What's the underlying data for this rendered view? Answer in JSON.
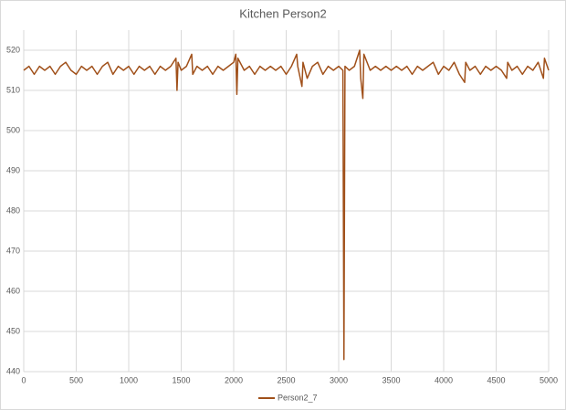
{
  "chart_data": {
    "type": "line",
    "title": "Kitchen Person2",
    "x": [
      0,
      50,
      100,
      150,
      200,
      250,
      300,
      350,
      400,
      450,
      500,
      550,
      600,
      650,
      700,
      750,
      800,
      850,
      900,
      950,
      1000,
      1050,
      1100,
      1150,
      1200,
      1250,
      1300,
      1350,
      1400,
      1450,
      1460,
      1470,
      1500,
      1550,
      1600,
      1610,
      1650,
      1700,
      1750,
      1800,
      1850,
      1900,
      1950,
      2000,
      2020,
      2030,
      2040,
      2100,
      2150,
      2200,
      2250,
      2300,
      2350,
      2400,
      2450,
      2500,
      2550,
      2600,
      2610,
      2650,
      2660,
      2700,
      2750,
      2800,
      2850,
      2900,
      2950,
      3000,
      3040,
      3050,
      3060,
      3100,
      3150,
      3200,
      3210,
      3230,
      3240,
      3300,
      3350,
      3400,
      3450,
      3500,
      3550,
      3600,
      3650,
      3700,
      3750,
      3800,
      3850,
      3900,
      3950,
      4000,
      4050,
      4100,
      4150,
      4200,
      4210,
      4250,
      4300,
      4350,
      4400,
      4450,
      4500,
      4550,
      4600,
      4610,
      4650,
      4700,
      4750,
      4800,
      4850,
      4900,
      4950,
      4960,
      5000
    ],
    "series": [
      {
        "name": "Person2_7",
        "color": "#a0501a",
        "values": [
          515,
          516,
          514,
          516,
          515,
          516,
          514,
          516,
          517,
          515,
          514,
          516,
          515,
          516,
          514,
          516,
          517,
          514,
          516,
          515,
          516,
          514,
          516,
          515,
          516,
          514,
          516,
          515,
          516,
          518,
          510,
          517,
          515,
          516,
          519,
          514,
          516,
          515,
          516,
          514,
          516,
          515,
          516,
          517,
          519,
          509,
          518,
          515,
          516,
          514,
          516,
          515,
          516,
          515,
          516,
          514,
          516,
          519,
          516,
          511,
          517,
          513,
          516,
          517,
          514,
          516,
          515,
          516,
          515,
          443,
          516,
          515,
          516,
          520,
          513,
          508,
          519,
          515,
          516,
          515,
          516,
          515,
          516,
          515,
          516,
          514,
          516,
          515,
          516,
          517,
          514,
          516,
          515,
          517,
          514,
          512,
          517,
          515,
          516,
          514,
          516,
          515,
          516,
          515,
          513,
          517,
          515,
          516,
          514,
          516,
          515,
          517,
          513,
          518,
          515
        ]
      }
    ],
    "xlim": [
      0,
      5000
    ],
    "xticks": [
      0,
      500,
      1000,
      1500,
      2000,
      2500,
      3000,
      3500,
      4000,
      4500,
      5000
    ],
    "ylim": [
      440,
      525
    ],
    "yticks": [
      440,
      450,
      460,
      470,
      480,
      490,
      500,
      510,
      520
    ],
    "grid": true,
    "legend": "bottom"
  }
}
